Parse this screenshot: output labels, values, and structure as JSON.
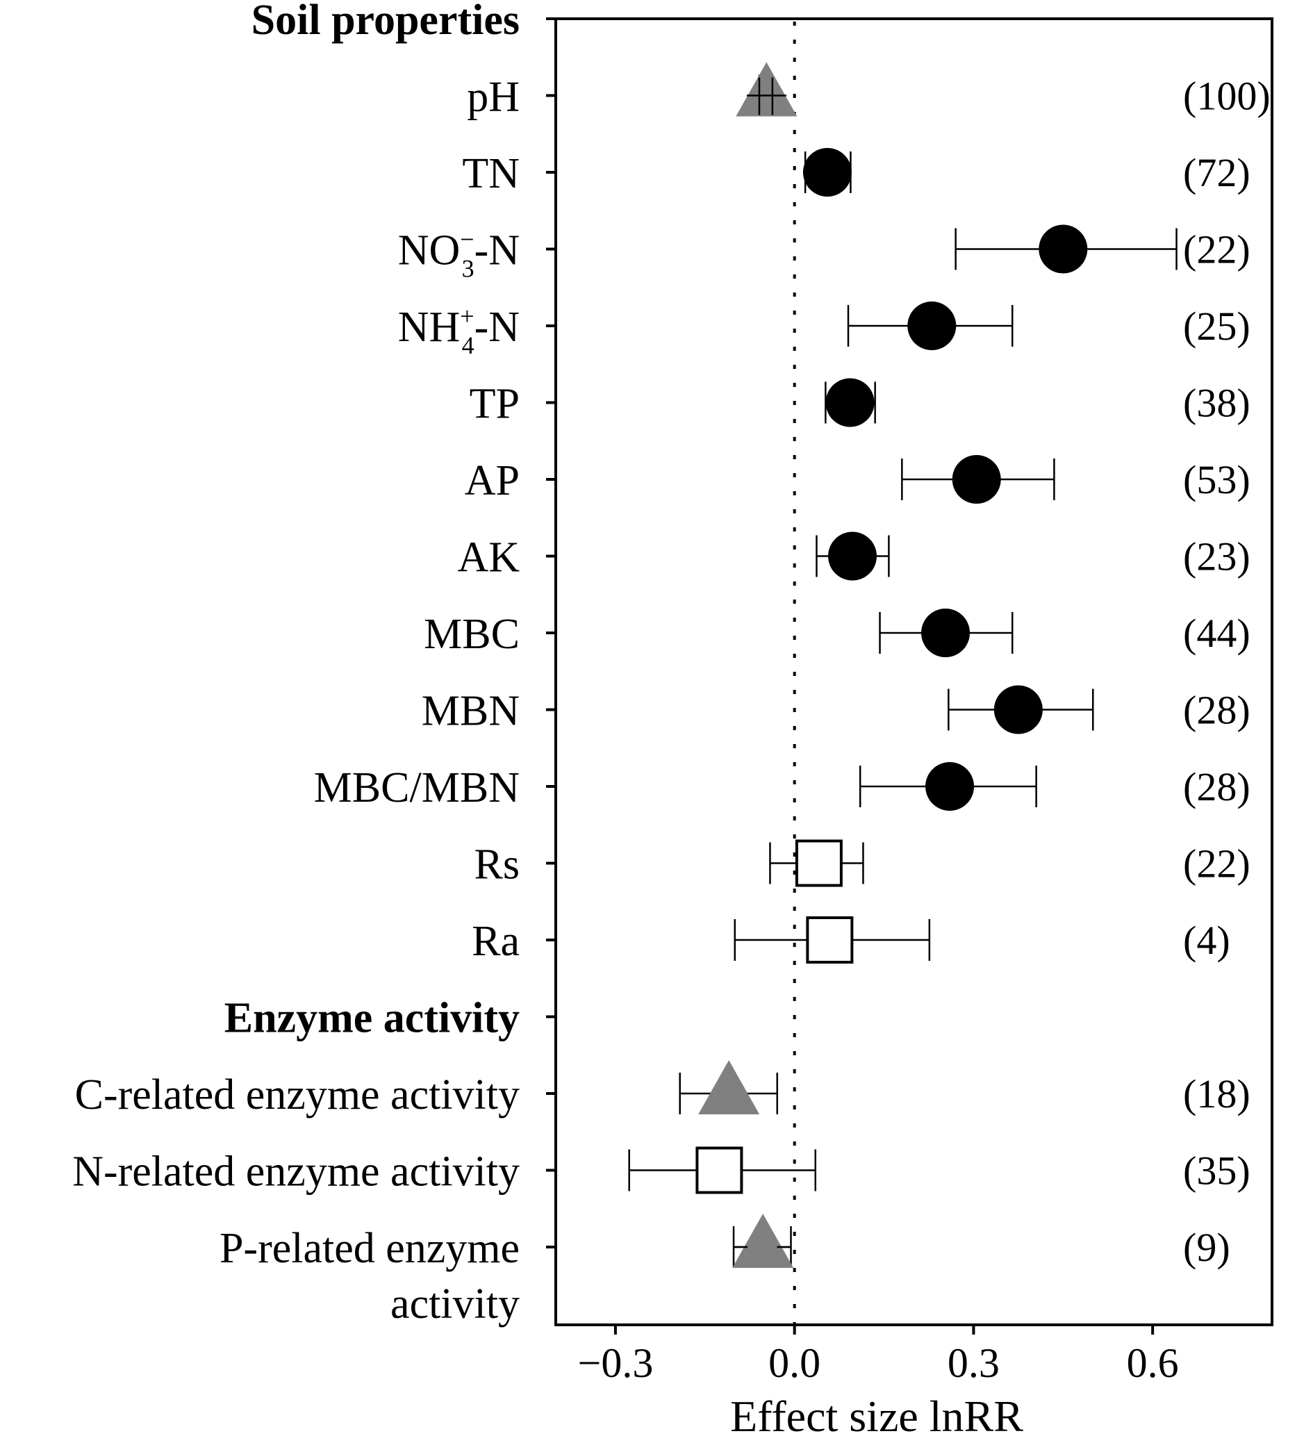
{
  "chart_data": {
    "type": "forest",
    "xlabel": "Effect size lnRR",
    "xlim": [
      -0.4,
      0.8
    ],
    "xticks": [
      -0.3,
      0.0,
      0.3,
      0.6
    ],
    "xtick_labels": [
      "−0.3",
      "0.0",
      "0.3",
      "0.6"
    ],
    "reference_line": 0.0,
    "colors": {
      "positive": "#000000",
      "negative": "#808080",
      "nonsignificant": "#ffffff"
    },
    "rows": [
      {
        "label": "Soil properties",
        "header": true
      },
      {
        "label": "pH",
        "mean": -0.047,
        "lo": -0.059,
        "hi": -0.037,
        "n": "(100)",
        "marker": "triangle"
      },
      {
        "label": "TN",
        "mean": 0.055,
        "lo": 0.018,
        "hi": 0.094,
        "n": "(72)",
        "marker": "circle"
      },
      {
        "label": "NO3-N",
        "label_main": "NO",
        "label_sub": "3",
        "label_sup": "−",
        "label_tail": "-N",
        "mean": 0.45,
        "lo": 0.27,
        "hi": 0.64,
        "n": "(22)",
        "marker": "circle"
      },
      {
        "label": "NH4+-N",
        "label_main": "NH",
        "label_sub": "4",
        "label_sup": "+",
        "label_tail": "-N",
        "mean": 0.23,
        "lo": 0.09,
        "hi": 0.365,
        "n": "(25)",
        "marker": "circle"
      },
      {
        "label": "TP",
        "mean": 0.093,
        "lo": 0.052,
        "hi": 0.135,
        "n": "(38)",
        "marker": "circle"
      },
      {
        "label": "AP",
        "mean": 0.305,
        "lo": 0.18,
        "hi": 0.435,
        "n": "(53)",
        "marker": "circle"
      },
      {
        "label": "AK",
        "mean": 0.097,
        "lo": 0.037,
        "hi": 0.158,
        "n": "(23)",
        "marker": "circle"
      },
      {
        "label": "MBC",
        "mean": 0.253,
        "lo": 0.143,
        "hi": 0.365,
        "n": "(44)",
        "marker": "circle"
      },
      {
        "label": "MBN",
        "mean": 0.375,
        "lo": 0.258,
        "hi": 0.5,
        "n": "(28)",
        "marker": "circle"
      },
      {
        "label": "MBC/MBN",
        "mean": 0.26,
        "lo": 0.11,
        "hi": 0.405,
        "n": "(28)",
        "marker": "circle"
      },
      {
        "label": "Rs",
        "mean": 0.041,
        "lo": -0.041,
        "hi": 0.115,
        "n": "(22)",
        "marker": "square"
      },
      {
        "label": "Ra",
        "mean": 0.059,
        "lo": -0.1,
        "hi": 0.226,
        "n": "(4)",
        "marker": "square"
      },
      {
        "label": "Enzyme activity",
        "header": true
      },
      {
        "label": "C-related enzyme activity",
        "mean": -0.11,
        "lo": -0.192,
        "hi": -0.029,
        "n": "(18)",
        "marker": "triangle"
      },
      {
        "label": "N-related enzyme activity",
        "mean": -0.126,
        "lo": -0.277,
        "hi": 0.035,
        "n": "(35)",
        "marker": "square"
      },
      {
        "label": "P-related enzyme activity",
        "label_line1": "P-related enzyme",
        "label_line2": "activity",
        "mean": -0.053,
        "lo": -0.102,
        "hi": -0.006,
        "n": "(9)",
        "marker": "triangle"
      }
    ]
  }
}
